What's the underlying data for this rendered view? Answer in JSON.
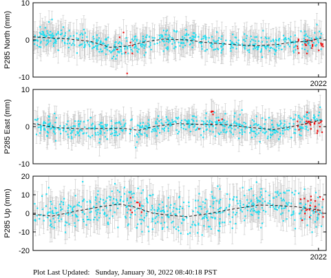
{
  "chart_data": [
    {
      "type": "scatter",
      "ylabel": "P285 North (mm)",
      "ylim": [
        -10,
        10
      ],
      "yticks": [
        "10",
        "0",
        "-10"
      ],
      "xtick_label": "2022",
      "grid": false,
      "series": [],
      "x_range": [
        "2016-02",
        "2022-02"
      ],
      "trend": [
        [
          2016.1,
          0.8
        ],
        [
          2016.8,
          0.3
        ],
        [
          2017.3,
          -0.4
        ],
        [
          2017.7,
          -2.0
        ],
        [
          2018.1,
          -1.6
        ],
        [
          2018.4,
          -0.6
        ],
        [
          2018.8,
          0.2
        ],
        [
          2019.3,
          0.0
        ],
        [
          2019.7,
          -0.7
        ],
        [
          2020.2,
          -1.2
        ],
        [
          2020.7,
          -1.6
        ],
        [
          2021.2,
          -1.2
        ],
        [
          2021.5,
          -0.6
        ],
        [
          2021.8,
          -0.4
        ],
        [
          2022.1,
          0.5
        ]
      ],
      "scatter_sd": 1.4,
      "errbar": 3.0,
      "seed": 11,
      "red_clusters": [
        [
          2017.75,
          0.8,
          -2.0,
          4
        ],
        [
          2021.6,
          2.0,
          -1.0,
          1.2
        ]
      ]
    },
    {
      "type": "scatter",
      "ylabel": "P285 East (mm)",
      "ylim": [
        -10,
        10
      ],
      "yticks": [
        "10",
        "0",
        "-10"
      ],
      "xtick_label": "2022",
      "grid": false,
      "series": [],
      "x_range": [
        "2016-02",
        "2022-02"
      ],
      "trend": [
        [
          2016.1,
          0.8
        ],
        [
          2016.6,
          -0.3
        ],
        [
          2017.1,
          -0.6
        ],
        [
          2017.5,
          -0.5
        ],
        [
          2018.0,
          -0.5
        ],
        [
          2018.3,
          -1.0
        ],
        [
          2018.6,
          0.0
        ],
        [
          2019.1,
          0.8
        ],
        [
          2019.6,
          0.6
        ],
        [
          2020.1,
          0.5
        ],
        [
          2020.6,
          -0.2
        ],
        [
          2021.1,
          -0.8
        ],
        [
          2021.4,
          -0.2
        ],
        [
          2021.7,
          0.6
        ],
        [
          2022.1,
          1.8
        ]
      ],
      "scatter_sd": 1.3,
      "errbar": 2.8,
      "seed": 23,
      "red_clusters": [
        [
          2019.55,
          0.5,
          1.4,
          2
        ],
        [
          2021.6,
          2.0,
          0.6,
          1.4
        ]
      ]
    },
    {
      "type": "scatter",
      "ylabel": "P285 Up (mm)",
      "ylim": [
        -20,
        20
      ],
      "yticks": [
        "20",
        "10",
        "0",
        "-10",
        "-20"
      ],
      "xtick_label": "2022",
      "grid": false,
      "series": [],
      "x_range": [
        "2016-02",
        "2022-02"
      ],
      "trend": [
        [
          2016.1,
          -0.5
        ],
        [
          2016.5,
          -1.5
        ],
        [
          2017.0,
          1.2
        ],
        [
          2017.5,
          3.5
        ],
        [
          2017.9,
          5.0
        ],
        [
          2018.2,
          3.5
        ],
        [
          2018.6,
          0.0
        ],
        [
          2019.0,
          -1.2
        ],
        [
          2019.3,
          -1.8
        ],
        [
          2019.8,
          0.0
        ],
        [
          2020.3,
          2.5
        ],
        [
          2020.8,
          4.5
        ],
        [
          2021.2,
          4.2
        ],
        [
          2021.6,
          3.5
        ],
        [
          2022.1,
          1.5
        ]
      ],
      "scatter_sd": 5.0,
      "errbar": 7.0,
      "seed": 37,
      "red_clusters": [
        [
          2018.0,
          0.4,
          4.5,
          3
        ],
        [
          2021.6,
          2.0,
          2.5,
          4
        ]
      ]
    }
  ],
  "footer": {
    "label": "Plot Last Updated:",
    "timestamp": "Sunday, January 30, 2022 08:40:18 PST"
  },
  "colors": {
    "data_point": "#22ddf0",
    "recent_point": "#ee1111",
    "error_bar": "#cccccc",
    "trend_line": "#111111",
    "frame": "#000000"
  }
}
